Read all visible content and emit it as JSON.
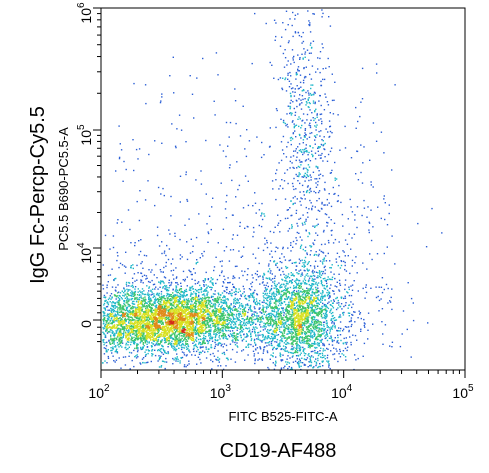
{
  "chart_data": {
    "type": "scatter",
    "title": "",
    "xlabel": "FITC B525-FITC-A",
    "ylabel": "PC5.5 B690-PC5.5-A",
    "outer_xlabel": "CD19-AF488",
    "outer_ylabel": "IgG Fc-Percp-Cy5.5",
    "x_scale": "biexponential",
    "y_scale": "biexponential",
    "xlim": [
      100,
      100000
    ],
    "ylim": [
      -3000,
      1000000
    ],
    "x_ticks": [
      {
        "base": "10",
        "exp": "2",
        "value": 100
      },
      {
        "base": "10",
        "exp": "3",
        "value": 1000
      },
      {
        "base": "10",
        "exp": "4",
        "value": 10000
      },
      {
        "base": "10",
        "exp": "5",
        "value": 100000
      }
    ],
    "y_ticks": [
      {
        "base": "",
        "exp": "",
        "text": "0",
        "value": 0
      },
      {
        "base": "10",
        "exp": "4",
        "value": 10000
      },
      {
        "base": "10",
        "exp": "5",
        "value": 100000
      },
      {
        "base": "10",
        "exp": "6",
        "value": 1000000
      }
    ],
    "grid": false,
    "legend": "none",
    "colormap": [
      "#1a1aa0",
      "#2b5fd6",
      "#1fb7c9",
      "#3bc46a",
      "#d8e020",
      "#e08a1a",
      "#d42a1a"
    ],
    "populations": [
      {
        "name": "",
        "x_center": 350,
        "y_center": 120,
        "x_spread": 0.38,
        "y_spread": 0.045,
        "count": 5200
      },
      {
        "name": "",
        "x_center": 4300,
        "y_center": 600,
        "x_spread": 0.18,
        "y_spread": 0.07,
        "count": 2200
      },
      {
        "name": "",
        "x_center": 4800,
        "y_center": 90000,
        "x_spread": 0.12,
        "y_spread": 0.22,
        "count": 700
      }
    ]
  }
}
